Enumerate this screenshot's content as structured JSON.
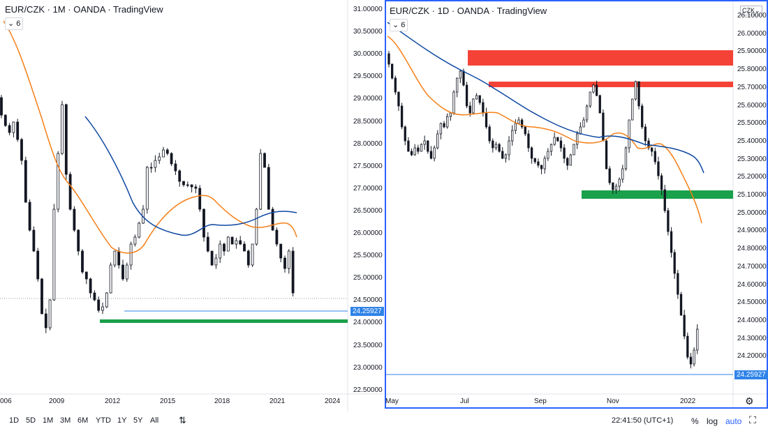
{
  "left_chart": {
    "title": "EUR/CZK · 1M · OANDA · TradingView",
    "indicator_badge": "6",
    "price_axis": [
      "31.00000",
      "30.50000",
      "30.00000",
      "29.50000",
      "29.00000",
      "28.50000",
      "28.00000",
      "27.50000",
      "27.00000",
      "26.50000",
      "26.00000",
      "25.50000",
      "25.00000",
      "24.50000",
      "24.00000",
      "23.50000",
      "23.00000",
      "22.50000"
    ],
    "last_price": "24.25927",
    "time_axis": [
      "006",
      "2009",
      "2012",
      "2015",
      "2018",
      "2021",
      "2024"
    ]
  },
  "right_chart": {
    "title": "EUR/CZK · 1D · OANDA · TradingView",
    "indicator_badge": "6",
    "currency": "CZK",
    "price_axis": [
      "26.10000",
      "26.00000",
      "25.90000",
      "25.80000",
      "25.70000",
      "25.60000",
      "25.50000",
      "25.40000",
      "25.30000",
      "25.20000",
      "25.10000",
      "25.00000",
      "24.90000",
      "24.80000",
      "24.70000",
      "24.60000",
      "24.50000",
      "24.40000",
      "24.30000",
      "24.20000"
    ],
    "last_price": "24.25927",
    "time_axis": [
      "May",
      "Jul",
      "Sep",
      "Nov",
      "2022"
    ]
  },
  "bottom_bar": {
    "ranges": [
      "1D",
      "5D",
      "1M",
      "3M",
      "6M",
      "YTD",
      "1Y",
      "5Y",
      "All"
    ],
    "time": "22:41:50 (UTC+1)",
    "percent": "%",
    "log": "log",
    "auto": "auto"
  },
  "colors": {
    "candle": "#131722",
    "ma_orange": "#f57f17",
    "ma_blue": "#0d47a1",
    "resistance": "#f44336",
    "support": "#1aa14b",
    "price_line": "#2f83e8",
    "active_border": "#2962ff"
  },
  "icons": [
    "chevron-down-icon",
    "compare-icon",
    "gear-icon",
    "fullscreen-icon"
  ]
}
